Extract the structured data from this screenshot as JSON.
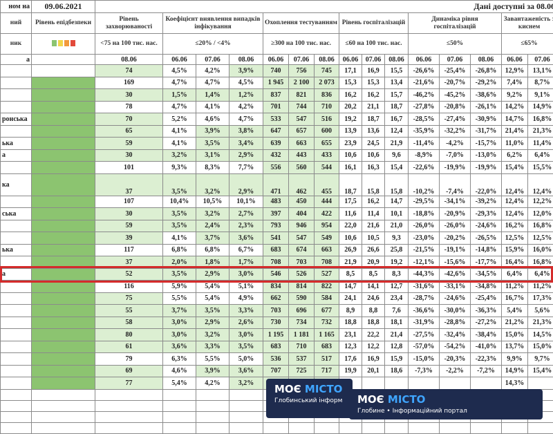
{
  "header": {
    "corner": "ном на",
    "date": "09.06.2021",
    "note": "Дані доступні за 08.06",
    "epid": "Рівень епідбезпеки",
    "row_fragments": [
      "ний",
      "ник"
    ],
    "total_label": "а",
    "groups": [
      {
        "title": "Рівень захворюваності",
        "threshold": "<75 на 100 тис. нас.",
        "dates": [
          "08.06"
        ]
      },
      {
        "title": "Коефіцієнт виявлення випадків інфікування",
        "threshold": "≤20% / <4%",
        "dates": [
          "06.06",
          "07.06",
          "08.06"
        ]
      },
      {
        "title": "Охоплення тестуванням",
        "threshold": "≥300 на 100 тис. нас.",
        "dates": [
          "06.06",
          "07.06",
          "08.06"
        ]
      },
      {
        "title": "Рівень госпіталізацій",
        "threshold": "≤60 на 100 тис. нас.",
        "dates": [
          "06.06",
          "07.06",
          "08.06"
        ]
      },
      {
        "title": "Динаміка рівня госпіталізацій",
        "threshold": "≤50%",
        "dates": [
          "06.06",
          "07.06",
          "08.06"
        ]
      },
      {
        "title": "Завантаженість з киснем",
        "threshold": "≤65%",
        "dates": [
          "06.06",
          "07.06"
        ]
      }
    ]
  },
  "epid_color": "#8cc470",
  "shade_color": "#dcefd2",
  "rows": [
    {
      "no_epid": true,
      "cells": [
        "74",
        "4,5%",
        "4,2%",
        "3,9%",
        "740",
        "756",
        "745",
        "17,1",
        "16,9",
        "15,5",
        "-26,6%",
        "-25,4%",
        "-26,8%",
        "12,9%",
        "13,1%"
      ],
      "shade": [
        0,
        3,
        4,
        5,
        6
      ]
    },
    {
      "cells": [
        "169",
        "4,7%",
        "4,7%",
        "4,5%",
        "1 945",
        "2 100",
        "2 073",
        "15,3",
        "15,3",
        "13,4",
        "-21,6%",
        "-20,7%",
        "-29,2%",
        "7,4%",
        "8,7%"
      ],
      "shade": [
        4,
        5,
        6
      ]
    },
    {
      "cells": [
        "30",
        "1,5%",
        "1,4%",
        "1,2%",
        "837",
        "821",
        "836",
        "16,2",
        "16,2",
        "15,7",
        "-46,2%",
        "-45,2%",
        "-38,6%",
        "9,2%",
        "9,1%"
      ],
      "shade": [
        0,
        1,
        2,
        3,
        4,
        5,
        6
      ]
    },
    {
      "cells": [
        "78",
        "4,7%",
        "4,1%",
        "4,2%",
        "701",
        "744",
        "710",
        "20,2",
        "21,1",
        "18,7",
        "-27,8%",
        "-20,8%",
        "-26,1%",
        "14,2%",
        "14,9%"
      ],
      "shade": [
        4,
        5,
        6
      ]
    },
    {
      "label": "ронська",
      "cells": [
        "70",
        "5,2%",
        "4,6%",
        "4,7%",
        "533",
        "547",
        "516",
        "19,2",
        "18,7",
        "16,7",
        "-28,5%",
        "-27,4%",
        "-30,9%",
        "14,7%",
        "16,8%"
      ],
      "shade": [
        0,
        4,
        5,
        6
      ]
    },
    {
      "cells": [
        "65",
        "4,1%",
        "3,9%",
        "3,8%",
        "647",
        "657",
        "600",
        "13,9",
        "13,6",
        "12,4",
        "-35,9%",
        "-32,2%",
        "-31,7%",
        "21,4%",
        "21,3%"
      ],
      "shade": [
        0,
        2,
        3,
        4,
        5,
        6
      ]
    },
    {
      "label": "ька",
      "cells": [
        "59",
        "4,1%",
        "3,5%",
        "3,4%",
        "639",
        "663",
        "655",
        "23,9",
        "24,5",
        "21,9",
        "-11,4%",
        "-4,2%",
        "-15,7%",
        "11,0%",
        "11,4%"
      ],
      "shade": [
        0,
        2,
        3,
        4,
        5,
        6
      ]
    },
    {
      "label": "а",
      "cells": [
        "30",
        "3,2%",
        "3,1%",
        "2,9%",
        "432",
        "443",
        "433",
        "10,6",
        "10,6",
        "9,6",
        "-8,9%",
        "-7,0%",
        "-13,0%",
        "6,2%",
        "6,4%"
      ],
      "shade": [
        0,
        1,
        2,
        3,
        4,
        5,
        6
      ]
    },
    {
      "cells": [
        "101",
        "9,3%",
        "8,3%",
        "7,7%",
        "556",
        "560",
        "544",
        "16,1",
        "16,3",
        "15,4",
        "-22,6%",
        "-19,9%",
        "-19,9%",
        "15,4%",
        "15,5%"
      ],
      "shade": [
        4,
        5,
        6
      ]
    },
    {
      "label": "ка",
      "tall": true,
      "cells": [
        "37",
        "3,5%",
        "3,2%",
        "2,9%",
        "471",
        "462",
        "455",
        "18,7",
        "15,8",
        "15,8",
        "-10,2%",
        "-7,4%",
        "-22,0%",
        "12,4%",
        "12,4%"
      ],
      "shade": [
        0,
        1,
        2,
        3,
        4,
        5,
        6
      ]
    },
    {
      "cells": [
        "107",
        "10,4%",
        "10,5%",
        "10,1%",
        "483",
        "450",
        "444",
        "17,5",
        "16,2",
        "14,7",
        "-29,5%",
        "-34,1%",
        "-39,2%",
        "12,4%",
        "12,2%"
      ],
      "shade": [
        4,
        5,
        6
      ]
    },
    {
      "label": "ська",
      "cells": [
        "30",
        "3,5%",
        "3,2%",
        "2,7%",
        "397",
        "404",
        "422",
        "11,6",
        "11,4",
        "10,1",
        "-18,8%",
        "-20,9%",
        "-29,3%",
        "12,4%",
        "12,0%"
      ],
      "shade": [
        0,
        1,
        2,
        3,
        4,
        5,
        6
      ]
    },
    {
      "cells": [
        "59",
        "3,5%",
        "2,4%",
        "2,3%",
        "793",
        "946",
        "954",
        "22,0",
        "21,6",
        "21,0",
        "-26,0%",
        "-26,0%",
        "-24,6%",
        "16,2%",
        "16,8%"
      ],
      "shade": [
        0,
        1,
        2,
        3,
        4,
        5,
        6
      ]
    },
    {
      "cells": [
        "39",
        "4,1%",
        "3,7%",
        "3,6%",
        "541",
        "547",
        "549",
        "10,6",
        "10,5",
        "9,3",
        "-23,0%",
        "-20,2%",
        "-26,5%",
        "12,5%",
        "12,5%"
      ],
      "shade": [
        0,
        2,
        3,
        4,
        5,
        6
      ]
    },
    {
      "label": "ька",
      "cells": [
        "117",
        "6,8%",
        "6,8%",
        "6,7%",
        "683",
        "674",
        "663",
        "26,9",
        "26,6",
        "25,8",
        "-21,5%",
        "-19,1%",
        "-14,8%",
        "15,9%",
        "16,0%"
      ],
      "shade": [
        4,
        5,
        6
      ]
    },
    {
      "cells": [
        "37",
        "2,0%",
        "1,8%",
        "1,7%",
        "708",
        "703",
        "708",
        "21,9",
        "20,9",
        "19,2",
        "-12,1%",
        "-15,6%",
        "-17,7%",
        "16,4%",
        "16,8%"
      ],
      "shade": [
        0,
        1,
        2,
        3,
        4,
        5,
        6
      ]
    },
    {
      "label": "а",
      "highlight": true,
      "cells": [
        "52",
        "3,5%",
        "2,9%",
        "3,0%",
        "546",
        "526",
        "527",
        "8,5",
        "8,5",
        "8,3",
        "-44,3%",
        "-42,6%",
        "-34,5%",
        "6,4%",
        "6,4%"
      ],
      "shade": [
        0,
        1,
        2,
        3,
        4,
        5,
        6
      ]
    },
    {
      "cells": [
        "116",
        "5,9%",
        "5,4%",
        "5,1%",
        "834",
        "814",
        "822",
        "14,7",
        "14,1",
        "12,7",
        "-31,6%",
        "-33,1%",
        "-34,8%",
        "11,2%",
        "11,2%"
      ],
      "shade": [
        4,
        5,
        6
      ]
    },
    {
      "cells": [
        "75",
        "5,5%",
        "5,4%",
        "4,9%",
        "662",
        "590",
        "584",
        "24,1",
        "24,6",
        "23,4",
        "-28,7%",
        "-24,6%",
        "-25,4%",
        "16,7%",
        "17,3%"
      ],
      "shade": [
        0,
        4,
        5,
        6
      ]
    },
    {
      "cells": [
        "55",
        "3,7%",
        "3,5%",
        "3,3%",
        "703",
        "696",
        "677",
        "8,9",
        "8,8",
        "7,6",
        "-36,6%",
        "-30,0%",
        "-36,3%",
        "5,4%",
        "5,6%"
      ],
      "shade": [
        0,
        1,
        2,
        3,
        4,
        5,
        6
      ]
    },
    {
      "cells": [
        "58",
        "3,0%",
        "2,9%",
        "2,6%",
        "730",
        "734",
        "732",
        "18,8",
        "18,8",
        "18,1",
        "-31,9%",
        "-28,8%",
        "-27,2%",
        "21,2%",
        "21,3%"
      ],
      "shade": [
        0,
        1,
        2,
        3,
        4,
        5,
        6
      ]
    },
    {
      "cells": [
        "80",
        "3,0%",
        "3,2%",
        "3,0%",
        "1 195",
        "1 181",
        "1 165",
        "23,1",
        "22,2",
        "21,4",
        "-27,5%",
        "-32,4%",
        "-38,4%",
        "15,0%",
        "14,5%"
      ],
      "shade": [
        0,
        1,
        2,
        3,
        4,
        5,
        6
      ]
    },
    {
      "cells": [
        "61",
        "3,6%",
        "3,3%",
        "3,5%",
        "683",
        "710",
        "683",
        "12,3",
        "12,2",
        "12,8",
        "-57,0%",
        "-54,2%",
        "-41,0%",
        "13,7%",
        "15,0%"
      ],
      "shade": [
        0,
        1,
        2,
        3,
        4,
        5,
        6
      ]
    },
    {
      "cells": [
        "79",
        "6,3%",
        "5,5%",
        "5,0%",
        "536",
        "537",
        "517",
        "17,6",
        "16,9",
        "15,9",
        "-15,0%",
        "-20,3%",
        "-22,3%",
        "9,9%",
        "9,7%"
      ],
      "shade": [
        4,
        5,
        6
      ]
    },
    {
      "cells": [
        "69",
        "4,6%",
        "3,9%",
        "3,6%",
        "707",
        "725",
        "717",
        "19,9",
        "20,1",
        "18,6",
        "-7,3%",
        "-2,2%",
        "-7,2%",
        "14,9%",
        "15,4%"
      ],
      "shade": [
        0,
        2,
        3,
        4,
        5,
        6
      ]
    },
    {
      "cells": [
        "77",
        "5,4%",
        "4,2%",
        "3,2%",
        null,
        null,
        null,
        null,
        null,
        null,
        null,
        null,
        null,
        "14,3%",
        null
      ],
      "shade": [
        0,
        3,
        4,
        5,
        6
      ]
    }
  ],
  "watermarks": [
    {
      "brand": "МОЄ",
      "brand_accent": "МІСТО",
      "sub": "Глобинський інформ"
    },
    {
      "brand": "МОЄ",
      "brand_accent": "МІСТО",
      "sub": "Глобине • Інформаційний портал"
    }
  ]
}
